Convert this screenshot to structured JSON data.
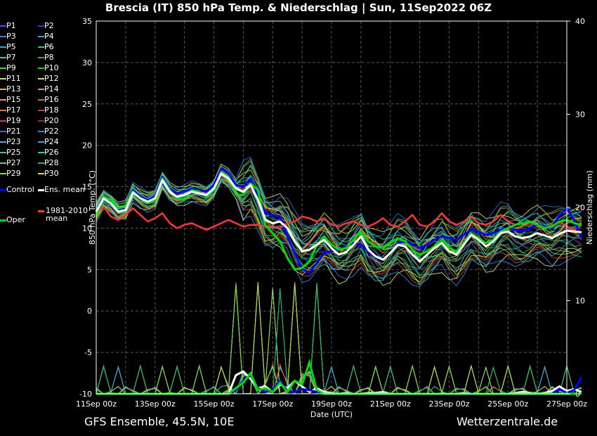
{
  "title": "Brescia  (IT)  850 hPa Temp. & Niederschlag | Sun, 11Sep2022 06Z",
  "footer_left": "GFS Ensemble, 45.5N, 10E",
  "footer_right": "Wetterzentrale.de",
  "legend": [
    {
      "label": "P1",
      "color": "#3355ff"
    },
    {
      "label": "P2",
      "color": "#2244cc"
    },
    {
      "label": "P3",
      "color": "#4477ff"
    },
    {
      "label": "P4",
      "color": "#3399ff"
    },
    {
      "label": "P5",
      "color": "#22aacc"
    },
    {
      "label": "P6",
      "color": "#22cc88"
    },
    {
      "label": "P7",
      "color": "#33ccaa"
    },
    {
      "label": "P8",
      "color": "#22aa66"
    },
    {
      "label": "P9",
      "color": "#33dd33"
    },
    {
      "label": "P10",
      "color": "#22cc22"
    },
    {
      "label": "P11",
      "color": "#ccdd44"
    },
    {
      "label": "P12",
      "color": "#dddd66"
    },
    {
      "label": "P13",
      "color": "#ddbb33"
    },
    {
      "label": "P14",
      "color": "#dd9933"
    },
    {
      "label": "P15",
      "color": "#dd9966"
    },
    {
      "label": "P16",
      "color": "#bb7733"
    },
    {
      "label": "P17",
      "color": "#dd7744"
    },
    {
      "label": "P18",
      "color": "#cc4433"
    },
    {
      "label": "P19",
      "color": "#dd3333"
    },
    {
      "label": "P20",
      "color": "#aa2222"
    },
    {
      "label": "P21",
      "color": "#3366dd"
    },
    {
      "label": "P22",
      "color": "#2288ee"
    },
    {
      "label": "P23",
      "color": "#44aaee"
    },
    {
      "label": "P24",
      "color": "#22aadd"
    },
    {
      "label": "P25",
      "color": "#33cc99"
    },
    {
      "label": "P26",
      "color": "#22dd99"
    },
    {
      "label": "P27",
      "color": "#44dd77"
    },
    {
      "label": "P28",
      "color": "#22bb44"
    },
    {
      "label": "P29",
      "color": "#88dd22"
    },
    {
      "label": "P30",
      "color": "#dddd22"
    },
    {
      "label": "Control",
      "color": "#0000ff"
    },
    {
      "label": "Ens. mean",
      "color": "#ffffff"
    },
    {
      "label": "Oper",
      "color": "#00dd00"
    },
    {
      "label": "1981-2010\nmean",
      "color": "#ff3333"
    }
  ],
  "chart_data": {
    "type": "line",
    "xlabel": "Date (UTC)",
    "ylabel": "850 hPa Temp. (°C)",
    "y2label": "Niederschlag (mm)",
    "ylim": [
      -10,
      35
    ],
    "y2lim": [
      0,
      40
    ],
    "yticks": [
      "35",
      "30",
      "25",
      "20",
      "15",
      "10",
      "5",
      "0",
      "-5",
      "-10"
    ],
    "y2ticks": [
      "40",
      "30",
      "20",
      "10",
      "0"
    ],
    "xlim": [
      "11Sep 00z",
      "27Sep 00z"
    ],
    "xticks": [
      "11Sep 00z",
      "13Sep 00z",
      "15Sep 00z",
      "17Sep 00z",
      "19Sep 00z",
      "21Sep 00z",
      "23Sep 00z",
      "25Sep 00z",
      "27Sep 00z"
    ],
    "grid": true,
    "time_step_hours": 6,
    "series": [
      {
        "name": "Ens. mean",
        "color": "#ffffff",
        "width": 3,
        "values": [
          12,
          13.6,
          13,
          12,
          12.2,
          14.3,
          13.6,
          13.2,
          13.6,
          15.8,
          14.4,
          13.8,
          14,
          14.4,
          14.2,
          14,
          14.8,
          16.6,
          16,
          14.8,
          14.4,
          15.2,
          13.4,
          11,
          10.6,
          10.8,
          10,
          8.4,
          7.2,
          7.4,
          8,
          8.6,
          7.6,
          6.8,
          7.1,
          8,
          9,
          7.4,
          6.6,
          6.2,
          7,
          8,
          7.8,
          6.8,
          6,
          6.8,
          7.6,
          8.2,
          7.2,
          6.8,
          8,
          9.2,
          8.6,
          7.8,
          8.4,
          9.4,
          9.6,
          9,
          8.8,
          9,
          9.4,
          9.1,
          8.8,
          9.3,
          9.7,
          9.6,
          9.5
        ]
      },
      {
        "name": "Control",
        "color": "#0000ff",
        "width": 3,
        "values": [
          12,
          13.8,
          13.2,
          12.2,
          12.4,
          14.6,
          13.8,
          13.4,
          13.8,
          16.2,
          14.8,
          14.2,
          14.4,
          14.8,
          14.6,
          14.4,
          15.2,
          17.2,
          16.6,
          15.2,
          15,
          16,
          14,
          11.8,
          11.6,
          11.4,
          9,
          7,
          5,
          4.6,
          5.8,
          7,
          7.2,
          7.4,
          7.8,
          8.2,
          8,
          7.2,
          6.4,
          6.2,
          7,
          8.2,
          8.4,
          8,
          7.6,
          8,
          8.6,
          9,
          8.8,
          8.6,
          9.2,
          9.8,
          9.6,
          9.2,
          9.4,
          9.8,
          10,
          9.8,
          9.6,
          10,
          10.4,
          10.2,
          10,
          11.6,
          12.4,
          11,
          8.8
        ]
      },
      {
        "name": "Oper",
        "color": "#00dd00",
        "width": 3,
        "values": [
          11.4,
          13.8,
          13.4,
          12.4,
          12.6,
          14.4,
          13.6,
          13,
          13.4,
          16,
          14.6,
          13.6,
          13.4,
          14.6,
          14.4,
          13.8,
          14.6,
          16.8,
          16.2,
          14,
          14,
          15.4,
          14.6,
          10.4,
          9.4,
          8.4,
          6.4,
          5,
          5.2,
          6,
          8,
          9,
          8,
          7.4,
          7.6,
          8.6,
          9.6,
          8.4,
          7.8,
          7.6,
          8.2,
          8.8,
          8.4,
          7.4,
          6.8,
          7.2,
          7.8,
          8.6,
          7.6,
          7.2,
          8.2,
          9.4,
          8.8,
          8.2,
          8.6,
          9.6,
          10,
          10.4,
          10.6,
          10.8,
          10.4,
          10,
          10.2,
          10.8,
          11,
          10.6,
          10.4
        ]
      },
      {
        "name": "1981-2010 mean",
        "color": "#ff3333",
        "width": 2.5,
        "values": [
          11.8,
          12.6,
          11.4,
          11,
          11.6,
          12.4,
          11.6,
          10.8,
          11.2,
          11.8,
          10.6,
          10,
          10.4,
          10.6,
          10.2,
          9.8,
          10.2,
          10.6,
          11,
          10.6,
          10.2,
          10.4,
          10.4,
          10.2,
          10.2,
          10,
          10.6,
          10.8,
          11.4,
          11.2,
          10.8,
          11.2,
          10.4,
          10.2,
          10.6,
          10.8,
          10.4,
          10.2,
          10.6,
          11.2,
          10.4,
          10.2,
          10.8,
          11.6,
          10.4,
          10.2,
          10.8,
          11.8,
          10.8,
          10.4,
          10.8,
          11.4,
          10.6,
          10.4,
          10.8,
          11.6,
          10.8,
          10.4,
          10.6,
          10.8,
          10.2,
          10,
          10.4,
          10.8,
          10.2,
          9.8,
          10.4
        ]
      }
    ],
    "members": [
      {
        "name": "P1",
        "offset": 0.4
      },
      {
        "name": "P2",
        "offset": -0.6
      },
      {
        "name": "P3",
        "offset": 1.2
      },
      {
        "name": "P4",
        "offset": -1.4
      },
      {
        "name": "P5",
        "offset": 2.0
      },
      {
        "name": "P6",
        "offset": -2.2
      },
      {
        "name": "P7",
        "offset": 0.8
      },
      {
        "name": "P8",
        "offset": -0.2
      },
      {
        "name": "P9",
        "offset": 1.6
      },
      {
        "name": "P10",
        "offset": -1.0
      },
      {
        "name": "P11",
        "offset": 2.6
      },
      {
        "name": "P12",
        "offset": -2.8
      },
      {
        "name": "P13",
        "offset": 0.2
      },
      {
        "name": "P14",
        "offset": -1.8
      },
      {
        "name": "P15",
        "offset": 1.0
      },
      {
        "name": "P16",
        "offset": -0.8
      },
      {
        "name": "P17",
        "offset": 2.2
      },
      {
        "name": "P18",
        "offset": -2.4
      },
      {
        "name": "P19",
        "offset": 0.6
      },
      {
        "name": "P20",
        "offset": -1.2
      },
      {
        "name": "P21",
        "offset": 3.0
      },
      {
        "name": "P22",
        "offset": -3.0
      },
      {
        "name": "P23",
        "offset": 1.4
      },
      {
        "name": "P24",
        "offset": -1.6
      },
      {
        "name": "P25",
        "offset": 0
      },
      {
        "name": "P26",
        "offset": 1.8
      },
      {
        "name": "P27",
        "offset": -0.4
      },
      {
        "name": "P28",
        "offset": 2.4
      },
      {
        "name": "P29",
        "offset": -2.0
      },
      {
        "name": "P30",
        "offset": 0.9
      }
    ],
    "precipitation_mm": {
      "Ens. mean": [
        0,
        0,
        0,
        0,
        0,
        0,
        0,
        0,
        0,
        0,
        0,
        0,
        0,
        0,
        0,
        0,
        0,
        0,
        0,
        2,
        2.4,
        1.6,
        0.6,
        0.8,
        0.2,
        1,
        0.6,
        1.4,
        0.8,
        0.2,
        0.6,
        0.2,
        0.1,
        0,
        0.1,
        0,
        0,
        0.1,
        0.1,
        0.2,
        0,
        0,
        0,
        0,
        0,
        0,
        0,
        0,
        0,
        0,
        0.1,
        0,
        0,
        0,
        0,
        0,
        0,
        0.1,
        0.2,
        0.1,
        0,
        0.1,
        0.3,
        0.8,
        0.3,
        0.5,
        0.2
      ],
      "Control": [
        0,
        0,
        0,
        0,
        0,
        0,
        0,
        0,
        0,
        0,
        0,
        0,
        0,
        0,
        0,
        0,
        0,
        0,
        0,
        0.4,
        1.4,
        2,
        0.6,
        0.2,
        0.4,
        1.4,
        0.3,
        0.2,
        0.5,
        0.4,
        0.2,
        0,
        0,
        0,
        0,
        0,
        0,
        0,
        0,
        0,
        0,
        0,
        0,
        0,
        0,
        0,
        0,
        0,
        0,
        0,
        0,
        0,
        0,
        0,
        0,
        0,
        0,
        0,
        0,
        0,
        0,
        0,
        0,
        0.5,
        0.1,
        0.4,
        1.8
      ],
      "Oper": [
        0,
        0,
        0,
        0,
        0,
        0,
        0,
        0,
        0,
        0,
        0,
        0,
        0,
        0,
        0,
        0,
        0,
        0,
        0,
        0.6,
        1.2,
        2.2,
        0.4,
        0.6,
        0.2,
        1.2,
        0.2,
        1.4,
        1,
        3.4,
        0.4,
        0,
        0,
        0,
        0,
        0,
        0,
        0,
        0,
        0,
        0,
        0,
        0,
        0,
        0,
        0,
        0,
        0,
        0,
        0,
        0,
        0,
        0,
        0,
        0,
        0,
        0,
        0,
        0,
        0,
        0,
        0,
        0,
        0,
        0,
        0,
        0
      ]
    }
  }
}
